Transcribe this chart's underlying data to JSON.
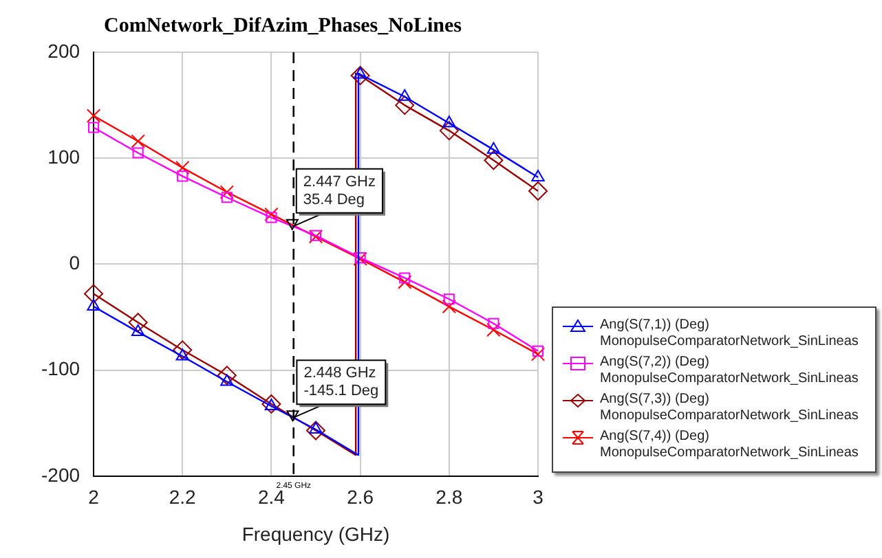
{
  "chart_data": {
    "type": "line",
    "title": "ComNetwork_DifAzim_Phases_NoLines",
    "xlabel": "Frequency (GHz)",
    "xlim": [
      2,
      3
    ],
    "xticks": [
      2,
      2.2,
      2.4,
      2.6,
      2.8,
      3
    ],
    "ylim": [
      -200,
      200
    ],
    "yticks": [
      -200,
      -100,
      0,
      100,
      200
    ],
    "grid": true,
    "legend": "bottom right",
    "line_style": "solid",
    "series": [
      {
        "name": "Ang(S(7,1)) (Deg)\nMonopulseComparatorNetwork_SinLineas",
        "color": "#0000ff",
        "marker": "triangle",
        "x": [
          2,
          2.1,
          2.2,
          2.3,
          2.4,
          2.5,
          2.595,
          2.596,
          2.6,
          2.7,
          2.8,
          2.9,
          3
        ],
        "values": [
          -40,
          -64,
          -87,
          -111,
          -134,
          -156,
          -180,
          180,
          179,
          158,
          133,
          108,
          82
        ]
      },
      {
        "name": "Ang(S(7,2)) (Deg)\nMonopulseComparatorNetwork_SinLineas",
        "color": "#ff00ff",
        "marker": "square",
        "x": [
          2,
          2.1,
          2.2,
          2.3,
          2.4,
          2.5,
          2.6,
          2.7,
          2.8,
          2.9,
          3
        ],
        "values": [
          129,
          105,
          83,
          63,
          44,
          27,
          6,
          -13,
          -33,
          -56,
          -82
        ]
      },
      {
        "name": "Ang(S(7,3)) (Deg)\nMonopulseComparatorNetwork_SinLineas",
        "color": "#990000",
        "marker": "diamond",
        "x": [
          2,
          2.1,
          2.2,
          2.3,
          2.4,
          2.5,
          2.589,
          2.59,
          2.6,
          2.7,
          2.8,
          2.9,
          3
        ],
        "values": [
          -28,
          -55,
          -81,
          -105,
          -132,
          -157,
          -180,
          180,
          178,
          150,
          126,
          98,
          69
        ]
      },
      {
        "name": "Ang(S(7,4)) (Deg)\nMonopulseComparatorNetwork_SinLineas",
        "color": "#ff0000",
        "marker": "cross",
        "x": [
          2,
          2.1,
          2.2,
          2.3,
          2.4,
          2.5,
          2.6,
          2.7,
          2.8,
          2.9,
          3
        ],
        "values": [
          140,
          116,
          91,
          68,
          47,
          26,
          5,
          -17,
          -40,
          -62,
          -85
        ]
      }
    ],
    "ref_lines": [
      {
        "axis": "x",
        "value": 2.45,
        "label": "2.45 GHz",
        "line_style": "dashed",
        "color": "#000000"
      }
    ],
    "annotations": [
      {
        "text": "2.447 GHz\n35.4 Deg",
        "x": 2.447,
        "y": 35.4
      },
      {
        "text": "2.448 GHz\n-145.1 Deg",
        "x": 2.448,
        "y": -145.1
      }
    ]
  }
}
